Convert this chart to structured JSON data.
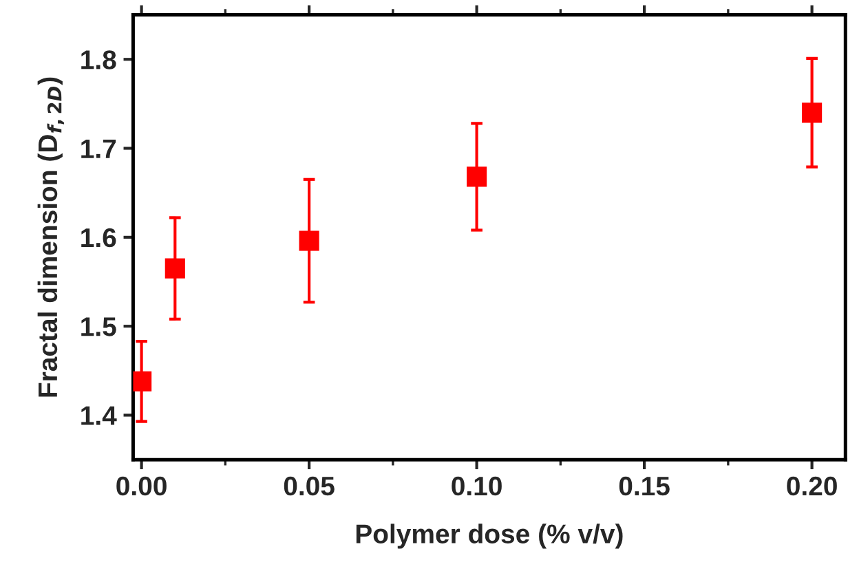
{
  "chart_data": {
    "type": "scatter",
    "xlabel": "Polymer dose (% v/v)",
    "ylabel": "Fractal dimension (D$_{f,2D}$)",
    "x": [
      0.0,
      0.01,
      0.05,
      0.1,
      0.2
    ],
    "series": [
      {
        "color": "#ff0000",
        "values": [
          1.438,
          1.565,
          1.596,
          1.668,
          1.74
        ],
        "errors": [
          0.045,
          0.057,
          0.069,
          0.06,
          0.061
        ]
      }
    ],
    "marker": "square",
    "xlim": [
      -0.0025,
      0.21
    ],
    "xticks": [
      {
        "value": 0,
        "label": "0.00"
      },
      0.05,
      {
        "value": 0.1,
        "label": "0.10"
      },
      0.15,
      {
        "value": 0.2,
        "label": "0.20"
      }
    ],
    "ylim": [
      1.35,
      1.85
    ],
    "yticks": [
      1.4,
      1.5,
      1.6,
      1.7,
      1.8
    ],
    "grid": false,
    "legend": false
  }
}
